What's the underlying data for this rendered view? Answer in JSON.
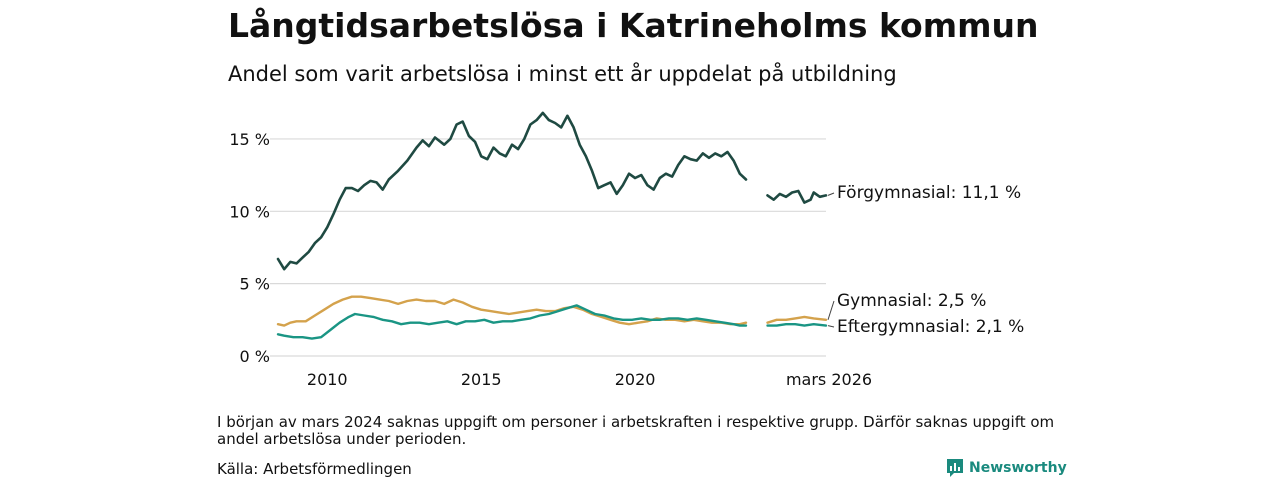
{
  "header": {
    "title": "Långtidsarbetslösa i Katrineholms kommun",
    "subtitle": "Andel som varit arbetslösa i minst ett år uppdelat på utbildning"
  },
  "footer": {
    "note": "I början av mars 2024 saknas uppgift om personer i arbetskraften i respektive grupp. Därför saknas uppgift om andel arbetslösa under perioden.",
    "source": "Källa: Arbetsförmedlingen",
    "brand": "Newsworthy"
  },
  "chart_data": {
    "type": "line",
    "title": "Långtidsarbetslösa i Katrineholms kommun",
    "xlabel": "",
    "ylabel": "",
    "xlim": [
      2008.4,
      2026.2
    ],
    "ylim": [
      0,
      17
    ],
    "yticks": [
      0,
      5,
      10,
      15
    ],
    "ytick_labels": [
      "0 %",
      "5 %",
      "10 %",
      "15 %"
    ],
    "xticks": [
      2010,
      2015,
      2020,
      2026.2
    ],
    "xtick_labels": [
      "2010",
      "2015",
      "2020",
      "mars 2026"
    ],
    "grid": true,
    "gap": [
      2023.6,
      2024.3
    ],
    "series": [
      {
        "name": "Förgymnasial",
        "label": "Förgymnasial: 11,1 %",
        "color": "#1f4a42",
        "points": [
          [
            2008.4,
            6.7
          ],
          [
            2008.6,
            6.0
          ],
          [
            2008.8,
            6.5
          ],
          [
            2009.0,
            6.4
          ],
          [
            2009.2,
            6.8
          ],
          [
            2009.4,
            7.2
          ],
          [
            2009.6,
            7.8
          ],
          [
            2009.8,
            8.2
          ],
          [
            2010.0,
            8.9
          ],
          [
            2010.2,
            9.8
          ],
          [
            2010.4,
            10.8
          ],
          [
            2010.6,
            11.6
          ],
          [
            2010.8,
            11.6
          ],
          [
            2011.0,
            11.4
          ],
          [
            2011.2,
            11.8
          ],
          [
            2011.4,
            12.1
          ],
          [
            2011.6,
            12.0
          ],
          [
            2011.8,
            11.5
          ],
          [
            2012.0,
            12.2
          ],
          [
            2012.3,
            12.8
          ],
          [
            2012.6,
            13.5
          ],
          [
            2012.9,
            14.4
          ],
          [
            2013.1,
            14.9
          ],
          [
            2013.3,
            14.5
          ],
          [
            2013.5,
            15.1
          ],
          [
            2013.8,
            14.6
          ],
          [
            2014.0,
            15.0
          ],
          [
            2014.2,
            16.0
          ],
          [
            2014.4,
            16.2
          ],
          [
            2014.6,
            15.2
          ],
          [
            2014.8,
            14.8
          ],
          [
            2015.0,
            13.8
          ],
          [
            2015.2,
            13.6
          ],
          [
            2015.4,
            14.4
          ],
          [
            2015.6,
            14.0
          ],
          [
            2015.8,
            13.8
          ],
          [
            2016.0,
            14.6
          ],
          [
            2016.2,
            14.3
          ],
          [
            2016.4,
            15.0
          ],
          [
            2016.6,
            16.0
          ],
          [
            2016.8,
            16.3
          ],
          [
            2017.0,
            16.8
          ],
          [
            2017.2,
            16.3
          ],
          [
            2017.4,
            16.1
          ],
          [
            2017.6,
            15.8
          ],
          [
            2017.8,
            16.6
          ],
          [
            2018.0,
            15.8
          ],
          [
            2018.2,
            14.6
          ],
          [
            2018.4,
            13.8
          ],
          [
            2018.6,
            12.8
          ],
          [
            2018.8,
            11.6
          ],
          [
            2019.0,
            11.8
          ],
          [
            2019.2,
            12.0
          ],
          [
            2019.4,
            11.2
          ],
          [
            2019.6,
            11.8
          ],
          [
            2019.8,
            12.6
          ],
          [
            2020.0,
            12.3
          ],
          [
            2020.2,
            12.5
          ],
          [
            2020.4,
            11.8
          ],
          [
            2020.6,
            11.5
          ],
          [
            2020.8,
            12.3
          ],
          [
            2021.0,
            12.6
          ],
          [
            2021.2,
            12.4
          ],
          [
            2021.4,
            13.2
          ],
          [
            2021.6,
            13.8
          ],
          [
            2021.8,
            13.6
          ],
          [
            2022.0,
            13.5
          ],
          [
            2022.2,
            14.0
          ],
          [
            2022.4,
            13.7
          ],
          [
            2022.6,
            14.0
          ],
          [
            2022.8,
            13.8
          ],
          [
            2023.0,
            14.1
          ],
          [
            2023.2,
            13.5
          ],
          [
            2023.4,
            12.6
          ],
          [
            2023.6,
            12.2
          ],
          [
            2024.3,
            11.1
          ],
          [
            2024.5,
            10.8
          ],
          [
            2024.7,
            11.2
          ],
          [
            2024.9,
            11.0
          ],
          [
            2025.1,
            11.3
          ],
          [
            2025.3,
            11.4
          ],
          [
            2025.5,
            10.6
          ],
          [
            2025.7,
            10.8
          ],
          [
            2025.8,
            11.3
          ],
          [
            2026.0,
            11.0
          ],
          [
            2026.2,
            11.1
          ]
        ]
      },
      {
        "name": "Gymnasial",
        "label": "Gymnasial:  2,5 %",
        "color": "#d4a24c",
        "points": [
          [
            2008.4,
            2.2
          ],
          [
            2008.6,
            2.1
          ],
          [
            2008.8,
            2.3
          ],
          [
            2009.0,
            2.4
          ],
          [
            2009.3,
            2.4
          ],
          [
            2009.6,
            2.8
          ],
          [
            2009.9,
            3.2
          ],
          [
            2010.2,
            3.6
          ],
          [
            2010.5,
            3.9
          ],
          [
            2010.8,
            4.1
          ],
          [
            2011.1,
            4.1
          ],
          [
            2011.4,
            4.0
          ],
          [
            2011.7,
            3.9
          ],
          [
            2012.0,
            3.8
          ],
          [
            2012.3,
            3.6
          ],
          [
            2012.6,
            3.8
          ],
          [
            2012.9,
            3.9
          ],
          [
            2013.2,
            3.8
          ],
          [
            2013.5,
            3.8
          ],
          [
            2013.8,
            3.6
          ],
          [
            2014.1,
            3.9
          ],
          [
            2014.4,
            3.7
          ],
          [
            2014.7,
            3.4
          ],
          [
            2015.0,
            3.2
          ],
          [
            2015.3,
            3.1
          ],
          [
            2015.6,
            3.0
          ],
          [
            2015.9,
            2.9
          ],
          [
            2016.2,
            3.0
          ],
          [
            2016.5,
            3.1
          ],
          [
            2016.8,
            3.2
          ],
          [
            2017.1,
            3.1
          ],
          [
            2017.4,
            3.1
          ],
          [
            2017.7,
            3.3
          ],
          [
            2018.0,
            3.4
          ],
          [
            2018.3,
            3.2
          ],
          [
            2018.6,
            2.9
          ],
          [
            2018.9,
            2.7
          ],
          [
            2019.2,
            2.5
          ],
          [
            2019.5,
            2.3
          ],
          [
            2019.8,
            2.2
          ],
          [
            2020.1,
            2.3
          ],
          [
            2020.4,
            2.4
          ],
          [
            2020.7,
            2.6
          ],
          [
            2021.0,
            2.5
          ],
          [
            2021.3,
            2.5
          ],
          [
            2021.6,
            2.4
          ],
          [
            2021.9,
            2.5
          ],
          [
            2022.2,
            2.4
          ],
          [
            2022.5,
            2.3
          ],
          [
            2022.8,
            2.3
          ],
          [
            2023.1,
            2.2
          ],
          [
            2023.4,
            2.2
          ],
          [
            2023.6,
            2.3
          ],
          [
            2024.3,
            2.3
          ],
          [
            2024.6,
            2.5
          ],
          [
            2024.9,
            2.5
          ],
          [
            2025.2,
            2.6
          ],
          [
            2025.5,
            2.7
          ],
          [
            2025.8,
            2.6
          ],
          [
            2026.2,
            2.5
          ]
        ]
      },
      {
        "name": "Eftergymnasial",
        "label": "Eftergymnasial:  2,1 %",
        "color": "#1a9584",
        "points": [
          [
            2008.4,
            1.5
          ],
          [
            2008.6,
            1.4
          ],
          [
            2008.9,
            1.3
          ],
          [
            2009.2,
            1.3
          ],
          [
            2009.5,
            1.2
          ],
          [
            2009.8,
            1.3
          ],
          [
            2010.1,
            1.8
          ],
          [
            2010.4,
            2.3
          ],
          [
            2010.7,
            2.7
          ],
          [
            2010.9,
            2.9
          ],
          [
            2011.2,
            2.8
          ],
          [
            2011.5,
            2.7
          ],
          [
            2011.8,
            2.5
          ],
          [
            2012.1,
            2.4
          ],
          [
            2012.4,
            2.2
          ],
          [
            2012.7,
            2.3
          ],
          [
            2013.0,
            2.3
          ],
          [
            2013.3,
            2.2
          ],
          [
            2013.6,
            2.3
          ],
          [
            2013.9,
            2.4
          ],
          [
            2014.2,
            2.2
          ],
          [
            2014.5,
            2.4
          ],
          [
            2014.8,
            2.4
          ],
          [
            2015.1,
            2.5
          ],
          [
            2015.4,
            2.3
          ],
          [
            2015.7,
            2.4
          ],
          [
            2016.0,
            2.4
          ],
          [
            2016.3,
            2.5
          ],
          [
            2016.6,
            2.6
          ],
          [
            2016.9,
            2.8
          ],
          [
            2017.2,
            2.9
          ],
          [
            2017.5,
            3.1
          ],
          [
            2017.8,
            3.3
          ],
          [
            2018.1,
            3.5
          ],
          [
            2018.4,
            3.2
          ],
          [
            2018.7,
            2.9
          ],
          [
            2019.0,
            2.8
          ],
          [
            2019.3,
            2.6
          ],
          [
            2019.6,
            2.5
          ],
          [
            2019.9,
            2.5
          ],
          [
            2020.2,
            2.6
          ],
          [
            2020.5,
            2.5
          ],
          [
            2020.8,
            2.5
          ],
          [
            2021.1,
            2.6
          ],
          [
            2021.4,
            2.6
          ],
          [
            2021.7,
            2.5
          ],
          [
            2022.0,
            2.6
          ],
          [
            2022.3,
            2.5
          ],
          [
            2022.6,
            2.4
          ],
          [
            2022.9,
            2.3
          ],
          [
            2023.2,
            2.2
          ],
          [
            2023.4,
            2.1
          ],
          [
            2023.6,
            2.1
          ],
          [
            2024.3,
            2.1
          ],
          [
            2024.6,
            2.1
          ],
          [
            2024.9,
            2.2
          ],
          [
            2025.2,
            2.2
          ],
          [
            2025.5,
            2.1
          ],
          [
            2025.8,
            2.2
          ],
          [
            2026.2,
            2.1
          ]
        ]
      }
    ]
  }
}
